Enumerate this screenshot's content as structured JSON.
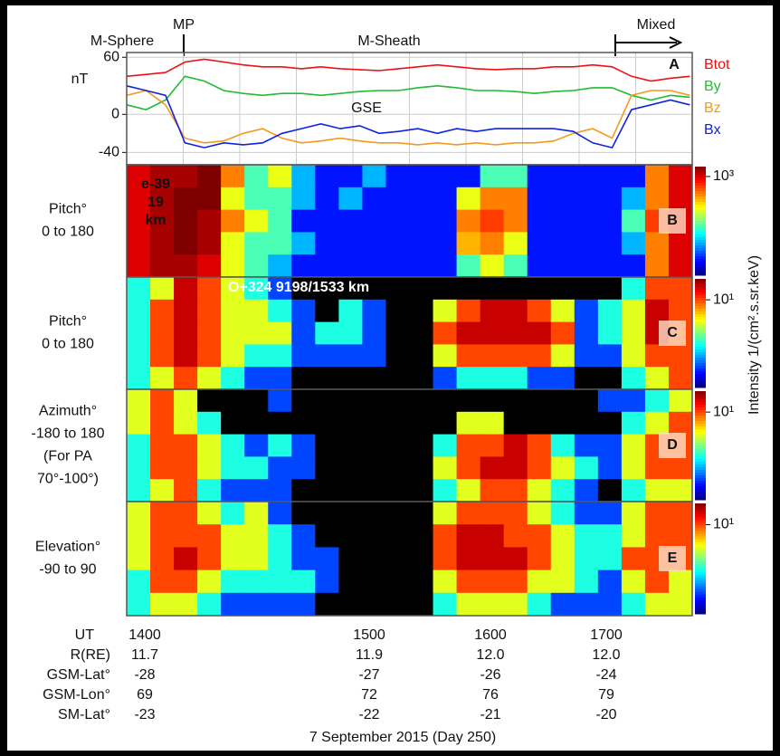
{
  "header": {
    "regions": [
      "M-Sphere",
      "MP",
      "M-Sheath",
      "Mixed"
    ]
  },
  "chart_data": [
    {
      "type": "line",
      "panel_label": "A",
      "ylabel": [
        "nT"
      ],
      "annotation": "GSE",
      "grid": true,
      "x": [
        13.0,
        13.16,
        13.32,
        13.48,
        13.64,
        13.8,
        13.96,
        14.12,
        14.28,
        14.44,
        14.6,
        14.76,
        14.92,
        15.08,
        15.24,
        15.4,
        15.56,
        15.72,
        15.88,
        16.04,
        16.2,
        16.36,
        16.52,
        16.68,
        16.84,
        17.0,
        17.16,
        17.32,
        17.48,
        17.64
      ],
      "xlim": [
        13.0,
        17.66
      ],
      "ylim": [
        -53,
        65
      ],
      "yticks": [
        60,
        0,
        -40
      ],
      "series": [
        {
          "name": "Btot",
          "color": "#ee1111",
          "values": [
            40,
            42,
            44,
            55,
            58,
            55,
            52,
            50,
            50,
            48,
            50,
            48,
            47,
            46,
            48,
            50,
            52,
            50,
            48,
            47,
            48,
            48,
            50,
            50,
            52,
            50,
            40,
            35,
            38,
            40
          ]
        },
        {
          "name": "By",
          "color": "#22bb33",
          "values": [
            10,
            5,
            15,
            40,
            35,
            25,
            22,
            20,
            22,
            22,
            20,
            22,
            24,
            25,
            25,
            28,
            30,
            28,
            25,
            25,
            24,
            22,
            24,
            25,
            28,
            28,
            20,
            15,
            20,
            18
          ]
        },
        {
          "name": "Bz",
          "color": "#f39a1e",
          "values": [
            20,
            25,
            10,
            -25,
            -30,
            -28,
            -20,
            -15,
            -25,
            -30,
            -28,
            -25,
            -28,
            -30,
            -30,
            -32,
            -30,
            -32,
            -30,
            -32,
            -30,
            -30,
            -28,
            -20,
            -15,
            -25,
            20,
            25,
            25,
            20
          ]
        },
        {
          "name": "Bx",
          "color": "#1122dd",
          "values": [
            30,
            25,
            20,
            -30,
            -35,
            -30,
            -32,
            -30,
            -20,
            -15,
            -10,
            -15,
            -12,
            -20,
            -18,
            -15,
            -20,
            -15,
            -18,
            -15,
            -15,
            -15,
            -15,
            -18,
            -30,
            -35,
            5,
            10,
            15,
            10
          ]
        }
      ]
    },
    {
      "type": "heatmap",
      "panel_label": "B",
      "ylabel": [
        "Pitch°",
        "0 to 180"
      ],
      "annotations": [
        "e-39",
        "19",
        "km"
      ],
      "log_color": true,
      "zlim": [
        1,
        2000
      ],
      "zticks": [
        {
          "value": 1000,
          "label": "10³"
        }
      ],
      "values": [
        [
          1000,
          1500,
          1500,
          2000,
          300,
          30,
          100,
          10,
          3,
          3,
          10,
          3,
          3,
          3,
          3,
          30,
          30,
          3,
          3,
          3,
          3,
          3,
          300,
          1000
        ],
        [
          1000,
          1500,
          2000,
          2000,
          100,
          30,
          30,
          10,
          3,
          10,
          3,
          3,
          3,
          3,
          100,
          300,
          300,
          3,
          3,
          3,
          3,
          10,
          300,
          1000
        ],
        [
          1000,
          1500,
          2000,
          1500,
          300,
          100,
          30,
          3,
          3,
          3,
          3,
          3,
          3,
          3,
          300,
          500,
          300,
          3,
          3,
          3,
          3,
          30,
          500,
          1000
        ],
        [
          1000,
          1500,
          2000,
          1500,
          100,
          30,
          30,
          10,
          3,
          3,
          3,
          3,
          3,
          3,
          200,
          300,
          100,
          3,
          3,
          3,
          3,
          10,
          300,
          1000
        ],
        [
          1000,
          1500,
          1500,
          1000,
          100,
          30,
          10,
          3,
          3,
          3,
          3,
          3,
          3,
          3,
          30,
          100,
          30,
          3,
          3,
          3,
          3,
          3,
          300,
          1000
        ]
      ]
    },
    {
      "type": "heatmap",
      "panel_label": "C",
      "ylabel": [
        "Pitch°",
        "0 to 180"
      ],
      "annotations": [
        "O+324   9198/1533 km"
      ],
      "log_color": true,
      "zlim": [
        0.1,
        30
      ],
      "zticks": [
        {
          "value": 10,
          "label": "10¹"
        }
      ],
      "values": [
        [
          1,
          3,
          20,
          10,
          3,
          1,
          0.3,
          0,
          0,
          0,
          0,
          0,
          0,
          0,
          0,
          0,
          0,
          0,
          0,
          0,
          0,
          1,
          10,
          10
        ],
        [
          1,
          10,
          20,
          10,
          3,
          3,
          1,
          0.3,
          0,
          1,
          0.3,
          0,
          0,
          3,
          10,
          20,
          20,
          10,
          3,
          0.3,
          1,
          3,
          20,
          10
        ],
        [
          1,
          10,
          20,
          10,
          3,
          3,
          3,
          0.3,
          1,
          1,
          0.3,
          0,
          0,
          10,
          20,
          20,
          20,
          20,
          10,
          0.3,
          1,
          3,
          20,
          10
        ],
        [
          1,
          10,
          20,
          10,
          3,
          1,
          1,
          0.3,
          0.3,
          0.3,
          0.3,
          0,
          0,
          3,
          10,
          10,
          10,
          10,
          3,
          0.3,
          0.3,
          3,
          10,
          10
        ],
        [
          1,
          3,
          10,
          3,
          1,
          0.3,
          0.3,
          0,
          0,
          0,
          0,
          0,
          0,
          0.3,
          1,
          1,
          1,
          0.3,
          0.3,
          0,
          0,
          1,
          3,
          10
        ]
      ]
    },
    {
      "type": "heatmap",
      "panel_label": "D",
      "ylabel": [
        "Azimuth°",
        "-180 to 180",
        "(For PA",
        "70°-100°)"
      ],
      "annotations": [],
      "log_color": true,
      "zlim": [
        0.1,
        30
      ],
      "zticks": [
        {
          "value": 10,
          "label": "10¹"
        }
      ],
      "values": [
        [
          3,
          10,
          3,
          0,
          0,
          0,
          0.3,
          0,
          0,
          0,
          0,
          0,
          0,
          0,
          0,
          0,
          0,
          0,
          0,
          0,
          0.3,
          0.3,
          1,
          3
        ],
        [
          3,
          10,
          3,
          1,
          0,
          0,
          0,
          0,
          0,
          0,
          0,
          0,
          0,
          0,
          3,
          3,
          0,
          0,
          0,
          0,
          0,
          1,
          3,
          10
        ],
        [
          1,
          10,
          10,
          3,
          1,
          0.3,
          1,
          0.3,
          0,
          0,
          0,
          0,
          0,
          1,
          10,
          10,
          20,
          10,
          1,
          0.3,
          0.3,
          3,
          10,
          10
        ],
        [
          1,
          10,
          10,
          3,
          1,
          1,
          0.3,
          0.3,
          0,
          0,
          0,
          0,
          0,
          3,
          10,
          20,
          20,
          10,
          3,
          1,
          0.3,
          3,
          10,
          10
        ],
        [
          1,
          3,
          10,
          1,
          0.3,
          0.3,
          0.3,
          0,
          0,
          0,
          0,
          0,
          0,
          1,
          3,
          10,
          10,
          3,
          1,
          0.3,
          0,
          1,
          3,
          3
        ]
      ]
    },
    {
      "type": "heatmap",
      "panel_label": "E",
      "ylabel": [
        "Elevation°",
        "-90 to 90"
      ],
      "annotations": [],
      "log_color": true,
      "zlim": [
        0.1,
        30
      ],
      "zticks": [
        {
          "value": 10,
          "label": "10¹"
        }
      ],
      "values": [
        [
          3,
          10,
          10,
          3,
          1,
          3,
          0.3,
          0,
          0,
          0,
          0,
          0,
          0,
          3,
          10,
          10,
          10,
          3,
          1,
          0.3,
          0.3,
          3,
          10,
          10
        ],
        [
          3,
          10,
          10,
          10,
          3,
          3,
          1,
          0.3,
          0,
          0,
          0,
          0,
          0,
          10,
          20,
          20,
          10,
          10,
          3,
          1,
          1,
          3,
          10,
          10
        ],
        [
          3,
          10,
          20,
          10,
          3,
          3,
          1,
          0.3,
          0.3,
          0,
          0,
          0,
          0,
          10,
          20,
          20,
          20,
          10,
          3,
          1,
          1,
          10,
          10,
          10
        ],
        [
          1,
          10,
          10,
          3,
          1,
          1,
          1,
          1,
          0.3,
          0,
          0,
          0,
          0,
          3,
          10,
          10,
          10,
          3,
          3,
          1,
          0.3,
          3,
          10,
          3
        ],
        [
          1,
          3,
          3,
          1,
          0.3,
          0.3,
          0.3,
          0.3,
          0,
          0,
          0,
          0,
          0,
          1,
          3,
          3,
          3,
          1,
          0.3,
          0.3,
          0.3,
          1,
          3,
          3
        ]
      ]
    }
  ],
  "colorbar_label": "Intensity 1/(cm².s.sr.keV)",
  "ephemeris": {
    "rows": [
      {
        "label": "UT",
        "values": [
          "1400",
          "1500",
          "1600",
          "1700"
        ]
      },
      {
        "label": "R(RE)",
        "values": [
          "11.7",
          "11.9",
          "12.0",
          "12.0"
        ]
      },
      {
        "label": "GSM-Lat°",
        "values": [
          "-28",
          "-27",
          "-26",
          "-24"
        ]
      },
      {
        "label": "GSM-Lon°",
        "values": [
          "69",
          "72",
          "76",
          "79"
        ]
      },
      {
        "label": "SM-Lat°",
        "values": [
          "-23",
          "-22",
          "-21",
          "-20"
        ]
      }
    ]
  },
  "footer": "7 September 2015 (Day 250)"
}
